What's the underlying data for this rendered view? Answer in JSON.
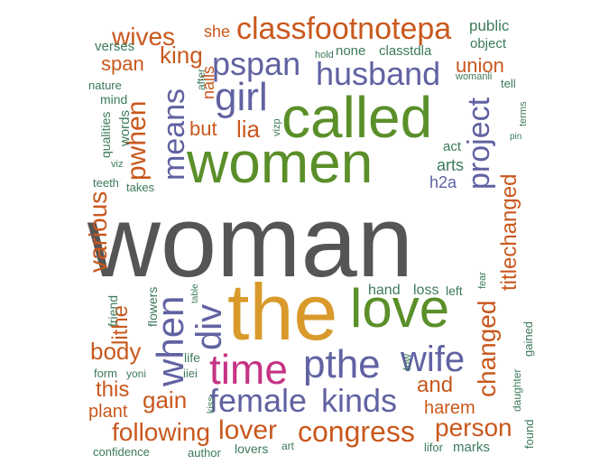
{
  "palette": {
    "grey": "#555555",
    "green": "#5a8f29",
    "orange": "#c9581d",
    "purple": "#6062a2",
    "gold": "#d99a2b",
    "magenta": "#c63384",
    "teal": "#3c7a5a"
  },
  "words": [
    {
      "text": "woman",
      "color": "grey"
    },
    {
      "text": "the",
      "color": "gold"
    },
    {
      "text": "called",
      "color": "green"
    },
    {
      "text": "women",
      "color": "green"
    },
    {
      "text": "love",
      "color": "green"
    },
    {
      "text": "time",
      "color": "magenta"
    },
    {
      "text": "pthe",
      "color": "purple"
    },
    {
      "text": "female",
      "color": "purple"
    },
    {
      "text": "kinds",
      "color": "purple"
    },
    {
      "text": "wife",
      "color": "purple"
    },
    {
      "text": "girl",
      "color": "purple"
    },
    {
      "text": "husband",
      "color": "purple"
    },
    {
      "text": "classfootnotepa",
      "color": "orange"
    },
    {
      "text": "pspan",
      "color": "purple"
    },
    {
      "text": "div",
      "color": "purple"
    },
    {
      "text": "when",
      "color": "purple"
    },
    {
      "text": "means",
      "color": "purple"
    },
    {
      "text": "project",
      "color": "purple"
    },
    {
      "text": "congress",
      "color": "orange"
    },
    {
      "text": "lover",
      "color": "orange"
    },
    {
      "text": "following",
      "color": "orange"
    },
    {
      "text": "changed",
      "color": "orange"
    },
    {
      "text": "titlechanged",
      "color": "orange"
    },
    {
      "text": "person",
      "color": "orange"
    },
    {
      "text": "wives",
      "color": "orange"
    },
    {
      "text": "king",
      "color": "orange"
    },
    {
      "text": "pwhen",
      "color": "orange"
    },
    {
      "text": "various",
      "color": "orange"
    },
    {
      "text": "lithe",
      "color": "orange"
    },
    {
      "text": "body",
      "color": "orange"
    },
    {
      "text": "gain",
      "color": "orange"
    },
    {
      "text": "and",
      "color": "orange"
    },
    {
      "text": "harem",
      "color": "orange"
    },
    {
      "text": "this",
      "color": "orange"
    },
    {
      "text": "plant",
      "color": "orange"
    },
    {
      "text": "span",
      "color": "orange"
    },
    {
      "text": "union",
      "color": "orange"
    },
    {
      "text": "lia",
      "color": "orange"
    },
    {
      "text": "but",
      "color": "orange"
    },
    {
      "text": "she",
      "color": "orange"
    },
    {
      "text": "nails",
      "color": "orange"
    },
    {
      "text": "arts",
      "color": "teal"
    },
    {
      "text": "h2a",
      "color": "purple"
    },
    {
      "text": "act",
      "color": "teal"
    },
    {
      "text": "public",
      "color": "teal"
    },
    {
      "text": "object",
      "color": "teal"
    },
    {
      "text": "verses",
      "color": "teal"
    },
    {
      "text": "none",
      "color": "teal"
    },
    {
      "text": "classtdla",
      "color": "teal"
    },
    {
      "text": "hold",
      "color": "teal"
    },
    {
      "text": "nature",
      "color": "teal"
    },
    {
      "text": "mind",
      "color": "teal"
    },
    {
      "text": "words",
      "color": "teal"
    },
    {
      "text": "qualities",
      "color": "teal"
    },
    {
      "text": "viz",
      "color": "teal"
    },
    {
      "text": "teeth",
      "color": "teal"
    },
    {
      "text": "takes",
      "color": "teal"
    },
    {
      "text": "after",
      "color": "teal"
    },
    {
      "text": "womanli",
      "color": "teal"
    },
    {
      "text": "tell",
      "color": "teal"
    },
    {
      "text": "terms",
      "color": "teal"
    },
    {
      "text": "pin",
      "color": "teal"
    },
    {
      "text": "vizp",
      "color": "teal"
    },
    {
      "text": "friend",
      "color": "teal"
    },
    {
      "text": "flowers",
      "color": "teal"
    },
    {
      "text": "table",
      "color": "teal"
    },
    {
      "text": "hand",
      "color": "teal"
    },
    {
      "text": "loss",
      "color": "teal"
    },
    {
      "text": "left",
      "color": "teal"
    },
    {
      "text": "fear",
      "color": "teal"
    },
    {
      "text": "life",
      "color": "teal"
    },
    {
      "text": "iiei",
      "color": "teal"
    },
    {
      "text": "low",
      "color": "teal"
    },
    {
      "text": "gained",
      "color": "teal"
    },
    {
      "text": "daughter",
      "color": "teal"
    },
    {
      "text": "form",
      "color": "teal"
    },
    {
      "text": "yoni",
      "color": "teal"
    },
    {
      "text": "kiss",
      "color": "teal"
    },
    {
      "text": "confidence",
      "color": "teal"
    },
    {
      "text": "author",
      "color": "teal"
    },
    {
      "text": "lovers",
      "color": "teal"
    },
    {
      "text": "art",
      "color": "teal"
    },
    {
      "text": "lifor",
      "color": "teal"
    },
    {
      "text": "marks",
      "color": "teal"
    },
    {
      "text": "found",
      "color": "teal"
    }
  ]
}
